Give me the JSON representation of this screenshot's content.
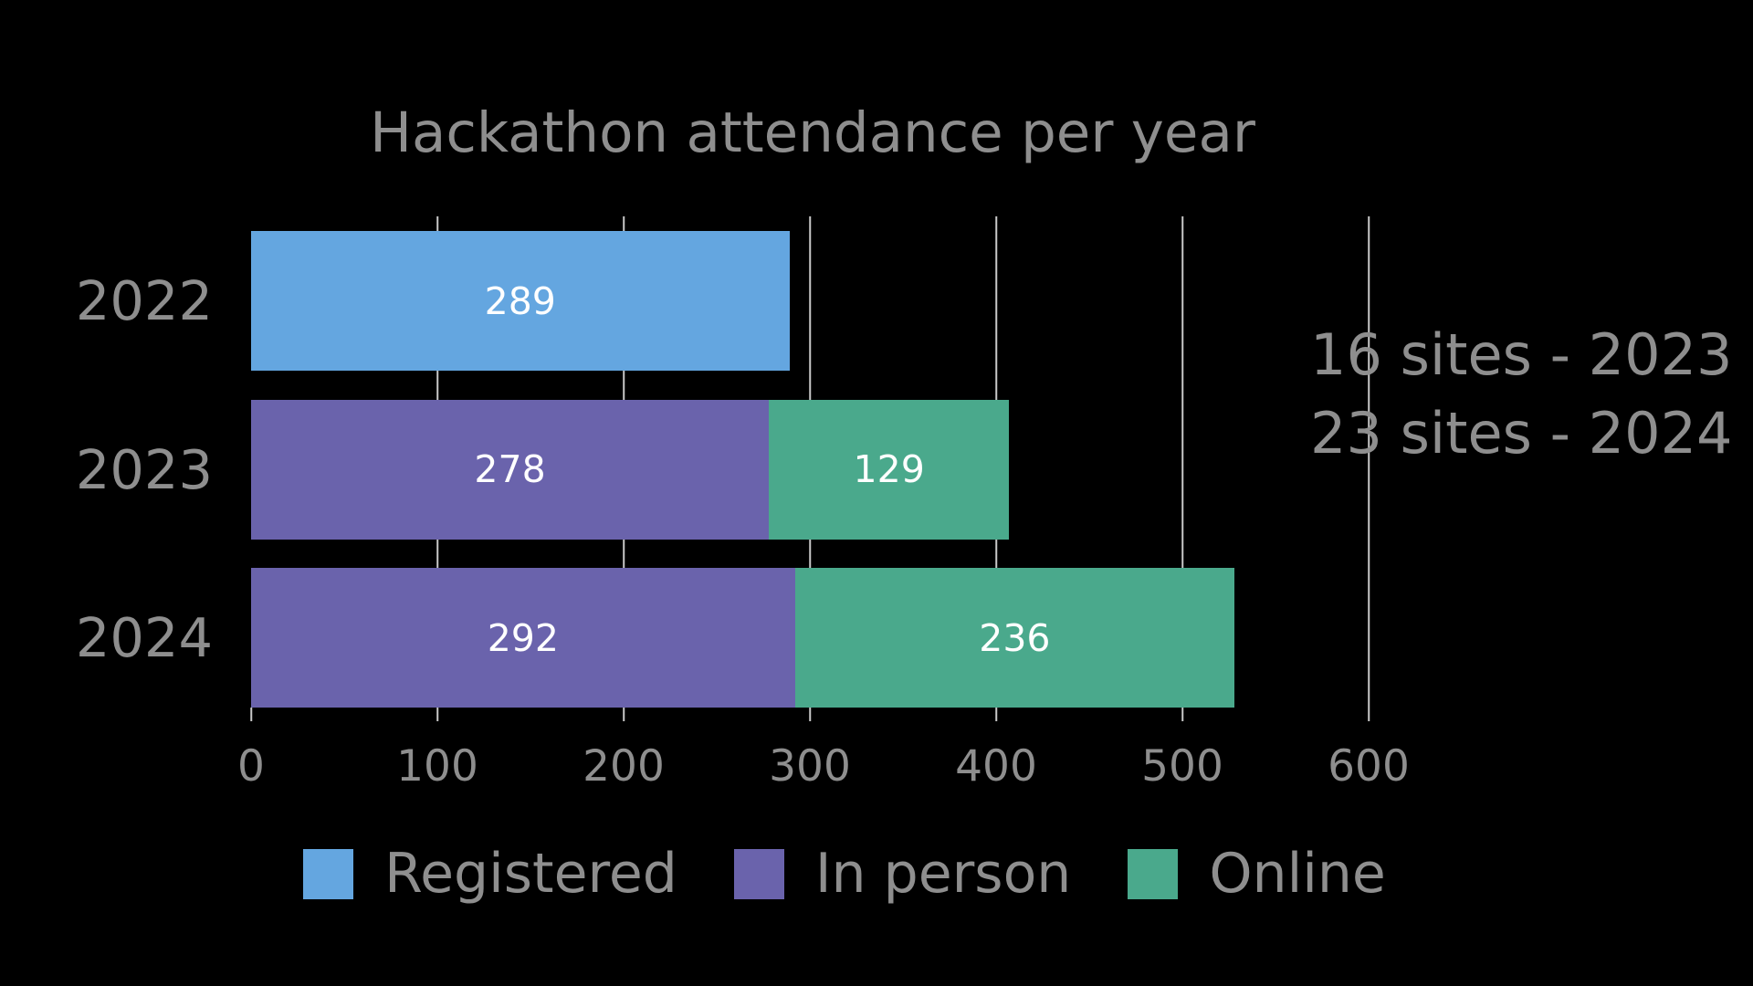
{
  "title": "Hackathon attendance per year",
  "colors": {
    "background": "#000000",
    "text_gray": "#8e8e8e",
    "grid": "#c9c9c9",
    "value_text": "#ffffff",
    "registered": "#64a6e0",
    "in_person": "#6a63ac",
    "online": "#4aa98c"
  },
  "annotation": {
    "line1": "16 sites - 2023",
    "line2": "23 sites - 2024"
  },
  "legend": [
    {
      "label": "Registered",
      "color_key": "registered"
    },
    {
      "label": "In person",
      "color_key": "in_person"
    },
    {
      "label": "Online",
      "color_key": "online"
    }
  ],
  "chart_data": {
    "type": "bar",
    "orientation": "horizontal",
    "stacked": true,
    "title": "Hackathon attendance per year",
    "categories": [
      "2022",
      "2023",
      "2024"
    ],
    "series": [
      {
        "name": "Registered",
        "color_key": "registered",
        "values": [
          289,
          null,
          null
        ]
      },
      {
        "name": "In person",
        "color_key": "in_person",
        "values": [
          null,
          278,
          292
        ]
      },
      {
        "name": "Online",
        "color_key": "online",
        "values": [
          null,
          129,
          236
        ]
      }
    ],
    "xlabel": "",
    "ylabel": "",
    "xlim": [
      0,
      600
    ],
    "xticks": [
      0,
      100,
      200,
      300,
      400,
      500,
      600
    ],
    "grid": "vertical",
    "data_labels": "inside-center",
    "legend_position": "bottom"
  }
}
